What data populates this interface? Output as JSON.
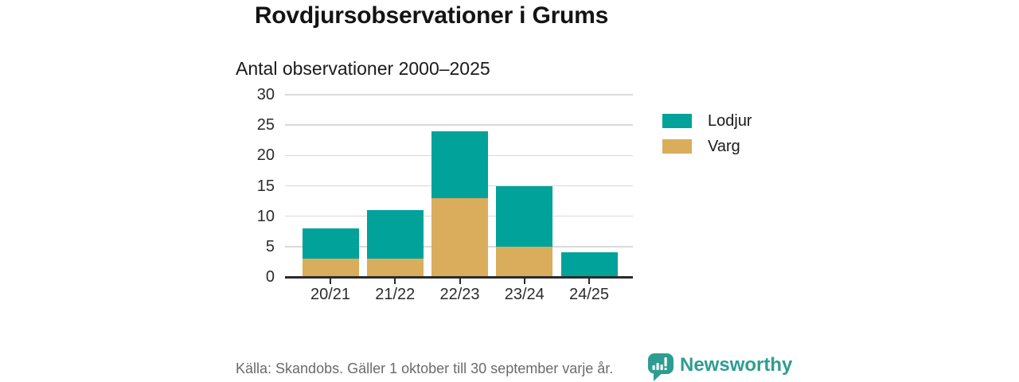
{
  "header": {
    "title": "Rovdjursobservationer i Grums",
    "subtitle": "Antal observationer 2000–2025"
  },
  "chart_data": {
    "type": "bar",
    "stacked": true,
    "title": "Rovdjursobservationer i Grums",
    "subtitle": "Antal observationer 2000–2025",
    "categories": [
      "20/21",
      "21/22",
      "22/23",
      "23/24",
      "24/25"
    ],
    "series": [
      {
        "name": "Lodjur",
        "color": "#00a299",
        "values": [
          5,
          8,
          11,
          10,
          4
        ]
      },
      {
        "name": "Varg",
        "color": "#d9ad5c",
        "values": [
          3,
          3,
          13,
          5,
          0
        ]
      }
    ],
    "stack_order_bottom_up": [
      "Varg",
      "Lodjur"
    ],
    "totals": [
      8,
      11,
      24,
      15,
      4
    ],
    "ylim": [
      0,
      30
    ],
    "yticks": [
      0,
      5,
      10,
      15,
      20,
      25,
      30
    ],
    "grid": true,
    "legend_position": "right"
  },
  "footer": {
    "source": "Källa: Skandobs. Gäller 1 oktober till 30 september varje år.",
    "brand": "Newsworthy"
  },
  "colors": {
    "lodjur": "#00a299",
    "varg": "#d9ad5c",
    "brand_teal": "#2e9d91",
    "axis": "#2b2b2b",
    "grid": "#d9d9d9",
    "text": "#1a1a1a",
    "muted": "#6b6b6b"
  }
}
